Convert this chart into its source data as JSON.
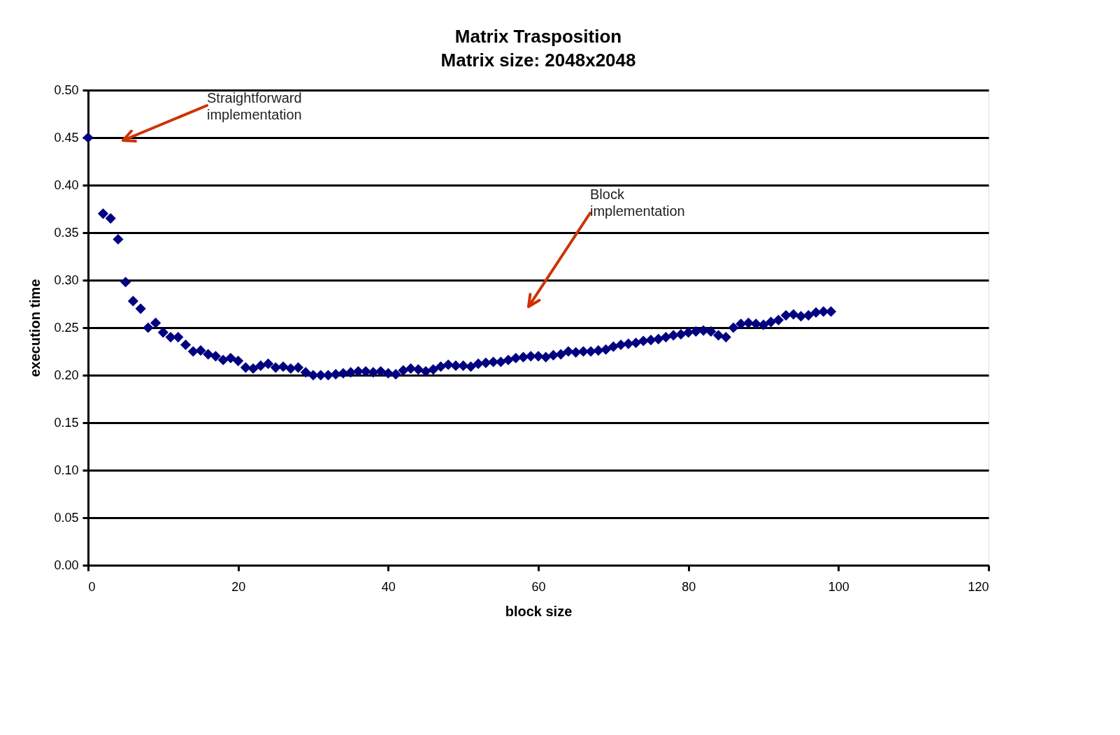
{
  "chart_data": {
    "type": "scatter",
    "title": "Matrix Trasposition",
    "subtitle": "Matrix size: 2048x2048",
    "xlabel": "block size",
    "ylabel": "execution time",
    "series": [
      {
        "color": "#000080",
        "x": [
          0,
          2,
          3,
          4,
          5,
          6,
          7,
          8,
          9,
          10,
          11,
          12,
          13,
          14,
          15,
          16,
          17,
          18,
          19,
          20,
          21,
          22,
          23,
          24,
          25,
          26,
          27,
          28,
          29,
          30,
          31,
          32,
          33,
          34,
          35,
          36,
          37,
          38,
          39,
          40,
          41,
          42,
          43,
          44,
          45,
          46,
          47,
          48,
          49,
          50,
          51,
          52,
          53,
          54,
          55,
          56,
          57,
          58,
          59,
          60,
          61,
          62,
          63,
          64,
          65,
          66,
          67,
          68,
          69,
          70,
          71,
          72,
          73,
          74,
          75,
          76,
          77,
          78,
          79,
          80,
          81,
          82,
          83,
          84,
          85,
          86,
          87,
          88,
          89,
          90,
          91,
          92,
          93,
          94,
          95,
          96,
          97,
          98,
          99
        ],
        "values": [
          0.45,
          0.37,
          0.365,
          0.343,
          0.298,
          0.278,
          0.27,
          0.25,
          0.255,
          0.245,
          0.24,
          0.24,
          0.232,
          0.225,
          0.226,
          0.222,
          0.22,
          0.216,
          0.218,
          0.215,
          0.208,
          0.207,
          0.21,
          0.212,
          0.208,
          0.209,
          0.207,
          0.208,
          0.203,
          0.2,
          0.2,
          0.2,
          0.201,
          0.202,
          0.203,
          0.204,
          0.204,
          0.203,
          0.204,
          0.202,
          0.201,
          0.205,
          0.207,
          0.206,
          0.204,
          0.206,
          0.209,
          0.211,
          0.21,
          0.21,
          0.209,
          0.212,
          0.213,
          0.214,
          0.214,
          0.216,
          0.218,
          0.219,
          0.22,
          0.22,
          0.219,
          0.221,
          0.222,
          0.225,
          0.224,
          0.225,
          0.225,
          0.226,
          0.227,
          0.23,
          0.232,
          0.233,
          0.234,
          0.236,
          0.237,
          0.238,
          0.24,
          0.242,
          0.243,
          0.245,
          0.246,
          0.247,
          0.246,
          0.242,
          0.24,
          0.25,
          0.254,
          0.255,
          0.254,
          0.253,
          0.256,
          0.258,
          0.263,
          0.264,
          0.262,
          0.263,
          0.266,
          0.267,
          0.267
        ]
      }
    ],
    "marker": "diamond",
    "xlim": [
      0,
      120
    ],
    "xticks": [
      0,
      20,
      40,
      60,
      80,
      100,
      120
    ],
    "ylim": [
      0,
      0.5
    ],
    "yticks": [
      {
        "value": 0,
        "label": "0.00"
      },
      {
        "value": 0.05,
        "label": "0.05"
      },
      {
        "value": 0.1,
        "label": "0.10"
      },
      {
        "value": 0.15,
        "label": "0.15"
      },
      {
        "value": 0.2,
        "label": "0.20"
      },
      {
        "value": 0.25,
        "label": "0.25"
      },
      {
        "value": 0.3,
        "label": "0.30"
      },
      {
        "value": 0.35,
        "label": "0.35"
      },
      {
        "value": 0.4,
        "label": "0.40"
      },
      {
        "value": 0.45,
        "label": "0.45"
      },
      {
        "value": 0.5,
        "label": "0.50"
      }
    ],
    "grid": "y",
    "annotations": [
      "Straightforward implementation",
      "Block implementation"
    ]
  }
}
